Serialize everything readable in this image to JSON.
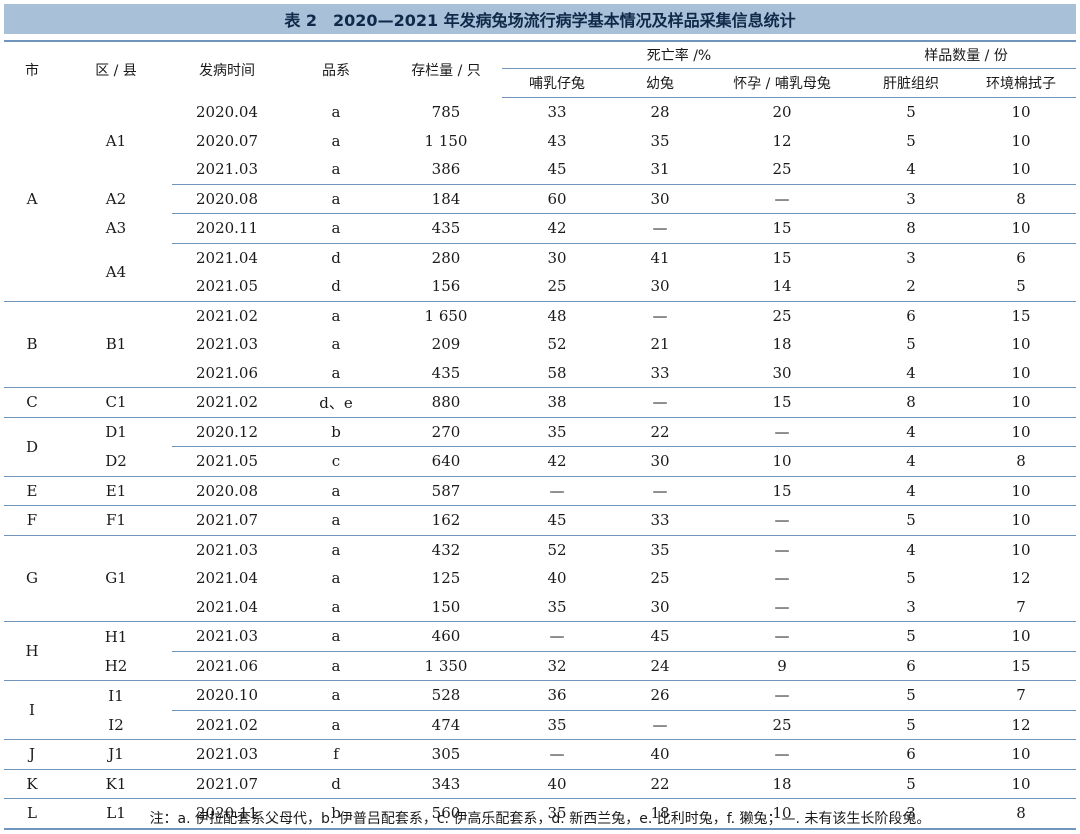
{
  "title": "表 2　2020—2021 年发病兔场流行病学基本情况及样品采集信息统计",
  "headers": {
    "city": "市",
    "district": "区 / 县",
    "onset": "发病时间",
    "breed": "品系",
    "stock": "存栏量 / 只",
    "mortality": "死亡率 /%",
    "suckling": "哺乳仔兔",
    "young": "幼兔",
    "doe": "怀孕 / 哺乳母兔",
    "samples": "样品数量 / 份",
    "liver": "肝脏组织",
    "swab": "环境棉拭子"
  },
  "rows": [
    {
      "city": "A",
      "district": "A1",
      "time": "2020.04",
      "breed": "a",
      "stock": "785",
      "m1": "33",
      "m2": "28",
      "m3": "20",
      "s1": "5",
      "s2": "10"
    },
    {
      "city": "",
      "district": "",
      "time": "2020.07",
      "breed": "a",
      "stock": "1 150",
      "m1": "43",
      "m2": "35",
      "m3": "12",
      "s1": "5",
      "s2": "10"
    },
    {
      "city": "",
      "district": "",
      "time": "2021.03",
      "breed": "a",
      "stock": "386",
      "m1": "45",
      "m2": "31",
      "m3": "25",
      "s1": "4",
      "s2": "10"
    },
    {
      "city": "",
      "district": "A2",
      "time": "2020.08",
      "breed": "a",
      "stock": "184",
      "m1": "60",
      "m2": "30",
      "m3": "—",
      "s1": "3",
      "s2": "8"
    },
    {
      "city": "",
      "district": "A3",
      "time": "2020.11",
      "breed": "a",
      "stock": "435",
      "m1": "42",
      "m2": "—",
      "m3": "15",
      "s1": "8",
      "s2": "10"
    },
    {
      "city": "",
      "district": "A4",
      "time": "2021.04",
      "breed": "d",
      "stock": "280",
      "m1": "30",
      "m2": "41",
      "m3": "15",
      "s1": "3",
      "s2": "6"
    },
    {
      "city": "",
      "district": "",
      "time": "2021.05",
      "breed": "d",
      "stock": "156",
      "m1": "25",
      "m2": "30",
      "m3": "14",
      "s1": "2",
      "s2": "5"
    },
    {
      "city": "B",
      "district": "B1",
      "time": "2021.02",
      "breed": "a",
      "stock": "1 650",
      "m1": "48",
      "m2": "—",
      "m3": "25",
      "s1": "6",
      "s2": "15"
    },
    {
      "city": "",
      "district": "",
      "time": "2021.03",
      "breed": "a",
      "stock": "209",
      "m1": "52",
      "m2": "21",
      "m3": "18",
      "s1": "5",
      "s2": "10"
    },
    {
      "city": "",
      "district": "",
      "time": "2021.06",
      "breed": "a",
      "stock": "435",
      "m1": "58",
      "m2": "33",
      "m3": "30",
      "s1": "4",
      "s2": "10"
    },
    {
      "city": "C",
      "district": "C1",
      "time": "2021.02",
      "breed": "d、e",
      "stock": "880",
      "m1": "38",
      "m2": "—",
      "m3": "15",
      "s1": "8",
      "s2": "10"
    },
    {
      "city": "D",
      "district": "D1",
      "time": "2020.12",
      "breed": "b",
      "stock": "270",
      "m1": "35",
      "m2": "22",
      "m3": "—",
      "s1": "4",
      "s2": "10"
    },
    {
      "city": "",
      "district": "D2",
      "time": "2021.05",
      "breed": "c",
      "stock": "640",
      "m1": "42",
      "m2": "30",
      "m3": "10",
      "s1": "4",
      "s2": "8"
    },
    {
      "city": "E",
      "district": "E1",
      "time": "2020.08",
      "breed": "a",
      "stock": "587",
      "m1": "—",
      "m2": "—",
      "m3": "15",
      "s1": "4",
      "s2": "10"
    },
    {
      "city": "F",
      "district": "F1",
      "time": "2021.07",
      "breed": "a",
      "stock": "162",
      "m1": "45",
      "m2": "33",
      "m3": "—",
      "s1": "5",
      "s2": "10"
    },
    {
      "city": "G",
      "district": "G1",
      "time": "2021.03",
      "breed": "a",
      "stock": "432",
      "m1": "52",
      "m2": "35",
      "m3": "—",
      "s1": "4",
      "s2": "10"
    },
    {
      "city": "",
      "district": "",
      "time": "2021.04",
      "breed": "a",
      "stock": "125",
      "m1": "40",
      "m2": "25",
      "m3": "—",
      "s1": "5",
      "s2": "12"
    },
    {
      "city": "",
      "district": "",
      "time": "2021.04",
      "breed": "a",
      "stock": "150",
      "m1": "35",
      "m2": "30",
      "m3": "—",
      "s1": "3",
      "s2": "7"
    },
    {
      "city": "H",
      "district": "H1",
      "time": "2021.03",
      "breed": "a",
      "stock": "460",
      "m1": "—",
      "m2": "45",
      "m3": "—",
      "s1": "5",
      "s2": "10"
    },
    {
      "city": "",
      "district": "H2",
      "time": "2021.06",
      "breed": "a",
      "stock": "1 350",
      "m1": "32",
      "m2": "24",
      "m3": "9",
      "s1": "6",
      "s2": "15"
    },
    {
      "city": "I",
      "district": "I1",
      "time": "2020.10",
      "breed": "a",
      "stock": "528",
      "m1": "36",
      "m2": "26",
      "m3": "—",
      "s1": "5",
      "s2": "7"
    },
    {
      "city": "",
      "district": "I2",
      "time": "2021.02",
      "breed": "a",
      "stock": "474",
      "m1": "35",
      "m2": "—",
      "m3": "25",
      "s1": "5",
      "s2": "12"
    },
    {
      "city": "J",
      "district": "J1",
      "time": "2021.03",
      "breed": "f",
      "stock": "305",
      "m1": "—",
      "m2": "40",
      "m3": "—",
      "s1": "6",
      "s2": "10"
    },
    {
      "city": "K",
      "district": "K1",
      "time": "2021.07",
      "breed": "d",
      "stock": "343",
      "m1": "40",
      "m2": "22",
      "m3": "18",
      "s1": "5",
      "s2": "10"
    },
    {
      "city": "L",
      "district": "L1",
      "time": "2020.11",
      "breed": "b",
      "stock": "560",
      "m1": "35",
      "m2": "18",
      "m3": "10",
      "s1": "3",
      "s2": "8"
    }
  ],
  "note": "注：a. 伊拉配套系父母代，b. 伊普吕配套系，c. 伊高乐配套系，d. 新西兰兔，e. 比利时兔，f. 獭兔；—. 未有该生长阶段兔。"
}
